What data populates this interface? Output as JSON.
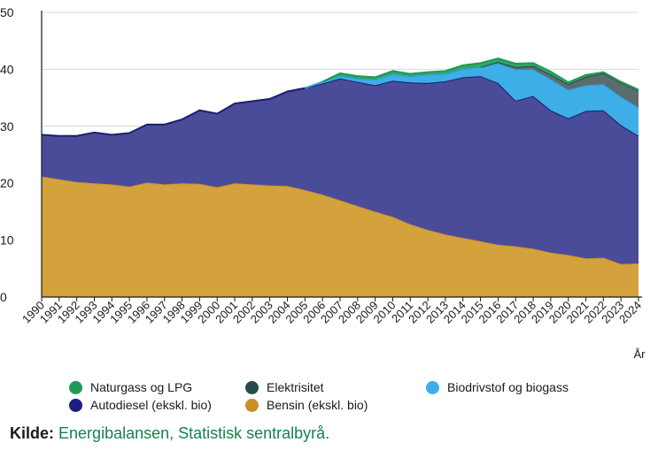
{
  "chart_data": {
    "type": "area",
    "stacked": true,
    "title": "",
    "xlabel": "År",
    "ylabel": "",
    "ylim": [
      0,
      50
    ],
    "yticks": [
      0,
      10,
      20,
      30,
      40,
      50
    ],
    "grid": true,
    "legend_position": "bottom",
    "categories": [
      "1990",
      "1991",
      "1992",
      "1993",
      "1994",
      "1995",
      "1996",
      "1997",
      "1998",
      "1999",
      "2000",
      "2001",
      "2002",
      "2003",
      "2004",
      "2005",
      "2006",
      "2007",
      "2008",
      "2009",
      "2010",
      "2011",
      "2012",
      "2013",
      "2014",
      "2015",
      "2016",
      "2017",
      "2018",
      "2019",
      "2020",
      "2021",
      "2022",
      "2023",
      "2024"
    ],
    "series": [
      {
        "name": "Bensin  (ekskl. bio)",
        "color": "#d4a23c",
        "line_color": "#c9902a",
        "values": [
          21.2,
          20.7,
          20.2,
          20.0,
          19.8,
          19.4,
          20.1,
          19.8,
          20.0,
          19.9,
          19.3,
          20.0,
          19.8,
          19.6,
          19.5,
          18.8,
          18.0,
          17.0,
          16.0,
          15.0,
          14.1,
          12.8,
          11.8,
          11.0,
          10.4,
          9.8,
          9.2,
          8.9,
          8.5,
          7.8,
          7.4,
          6.8,
          6.9,
          5.8,
          5.9
        ]
      },
      {
        "name": "Autodiesel  (ekskl. bio)",
        "color": "#4a4c9a",
        "line_color": "#1a1f6e",
        "values": [
          7.3,
          7.6,
          8.1,
          8.9,
          8.7,
          9.4,
          10.2,
          10.5,
          11.2,
          12.9,
          12.9,
          14.0,
          14.6,
          15.2,
          16.6,
          17.9,
          19.5,
          21.4,
          21.8,
          22.2,
          23.9,
          24.9,
          25.8,
          26.9,
          28.2,
          29.0,
          28.4,
          25.6,
          26.8,
          25.0,
          24.0,
          25.9,
          25.9,
          24.4,
          22.4
        ]
      },
      {
        "name": "Biodrivstof og biogass",
        "color": "#3eaee6",
        "line_color": "#2a9fdc",
        "values": [
          0,
          0,
          0,
          0,
          0,
          0,
          0,
          0,
          0,
          0,
          0,
          0,
          0,
          0,
          0,
          0,
          0.3,
          0.5,
          0.6,
          1.0,
          1.2,
          1.1,
          1.5,
          1.3,
          1.5,
          1.6,
          3.5,
          5.5,
          4.7,
          5.5,
          5.0,
          4.5,
          4.6,
          5.0,
          5.0
        ]
      },
      {
        "name": "Elektrisitet",
        "color": "#5c6b6e",
        "line_color": "#2a4a4c",
        "values": [
          0,
          0,
          0,
          0,
          0,
          0,
          0,
          0,
          0,
          0,
          0,
          0,
          0,
          0,
          0,
          0,
          0,
          0,
          0,
          0,
          0,
          0,
          0,
          0,
          0,
          0,
          0.2,
          0.4,
          0.6,
          0.8,
          1.0,
          1.5,
          1.9,
          2.5,
          3.0
        ]
      },
      {
        "name": "Naturgass og LPG",
        "color": "#2fa866",
        "line_color": "#1f9a55",
        "values": [
          0,
          0,
          0,
          0,
          0,
          0,
          0,
          0,
          0,
          0,
          0,
          0,
          0,
          0,
          0,
          0,
          0,
          0.4,
          0.4,
          0.4,
          0.5,
          0.4,
          0.4,
          0.5,
          0.6,
          0.7,
          0.6,
          0.6,
          0.5,
          0.5,
          0.3,
          0.3,
          0.2,
          0.1,
          0.1
        ]
      }
    ]
  },
  "legend": [
    {
      "label": "Naturgass og LPG",
      "color": "#1f9a55"
    },
    {
      "label": "Elektrisitet",
      "color": "#2a4a4c"
    },
    {
      "label": "Biodrivstof og biogass",
      "color": "#3eaee6"
    },
    {
      "label": "Autodiesel  (ekskl. bio)",
      "color": "#1a1f80"
    },
    {
      "label": "Bensin  (ekskl. bio)",
      "color": "#c9902a"
    }
  ],
  "source": {
    "label": "Kilde:",
    "text": "Energibalansen, Statistisk sentralbyrå."
  }
}
